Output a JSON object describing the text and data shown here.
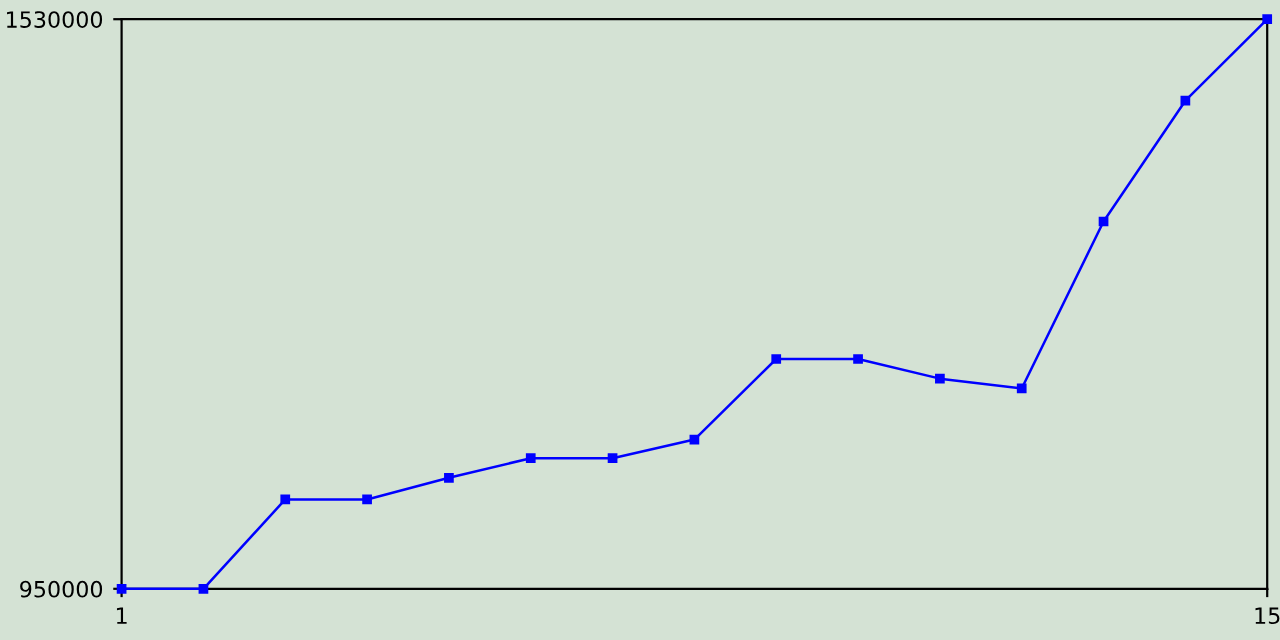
{
  "chart_data": {
    "type": "line",
    "x": [
      1,
      2,
      3,
      4,
      5,
      6,
      7,
      8,
      9,
      10,
      11,
      12,
      13,
      14,
      15
    ],
    "series": [
      {
        "color": "#0000ff",
        "values": [
          950000,
          950000,
          1041000,
          1041000,
          1063000,
          1083000,
          1083000,
          1102000,
          1184000,
          1184000,
          1164000,
          1154000,
          1324000,
          1447000,
          1530000
        ]
      }
    ],
    "xlim": [
      1,
      15
    ],
    "xticks": [
      1,
      15
    ],
    "ylim": [
      950000,
      1530000
    ],
    "yticks": [
      950000,
      1530000
    ],
    "grid": false,
    "legend": false,
    "marker": "square",
    "line_style": "solid"
  }
}
